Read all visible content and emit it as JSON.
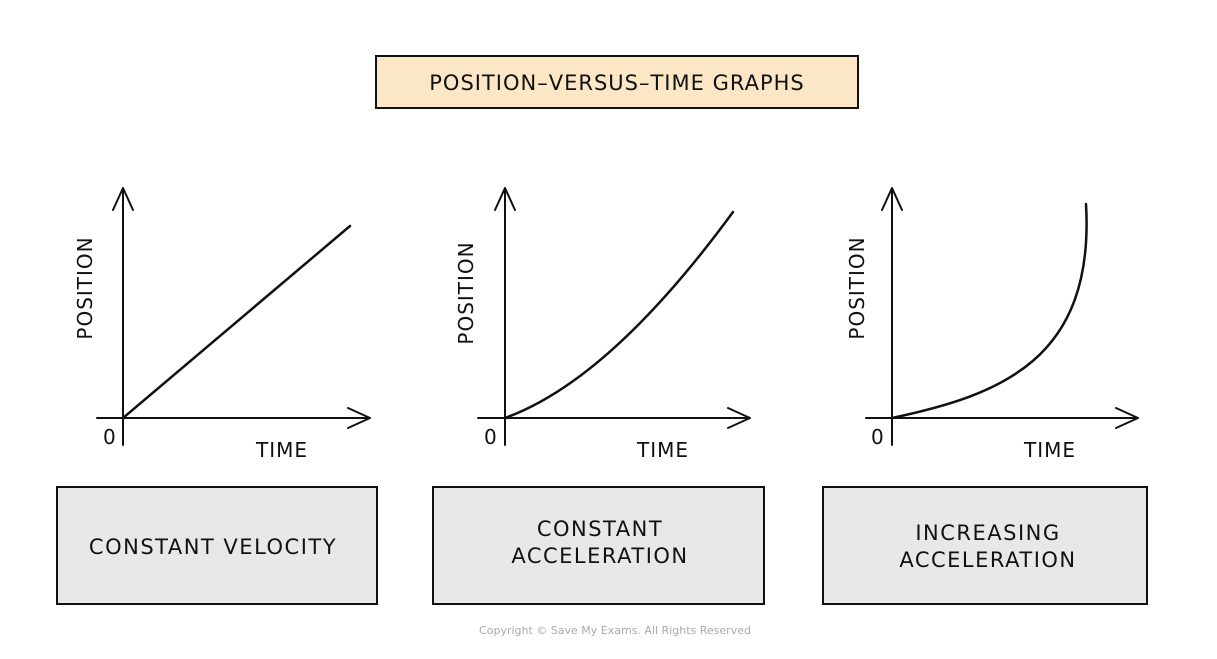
{
  "title": "POSITION–VERSUS–TIME GRAPHS",
  "colors": {
    "title_fill": "#fbe7c6",
    "box_fill": "#e8e8e8",
    "line": "#111111"
  },
  "graphs": [
    {
      "y_label": "POSITION",
      "x_label": "TIME",
      "origin_label": "0",
      "curve": "straight line",
      "caption_lines": [
        "CONSTANT VELOCITY"
      ]
    },
    {
      "y_label": "POSITION",
      "x_label": "TIME",
      "origin_label": "0",
      "curve": "upward curve",
      "caption_lines": [
        "CONSTANT",
        "ACCELERATION"
      ]
    },
    {
      "y_label": "POSITION",
      "x_label": "TIME",
      "origin_label": "0",
      "curve": "steepening curve",
      "caption_lines": [
        "INCREASING",
        "ACCELERATION"
      ]
    }
  ],
  "copyright": "Copyright © Save My Exams. All Rights Reserved"
}
